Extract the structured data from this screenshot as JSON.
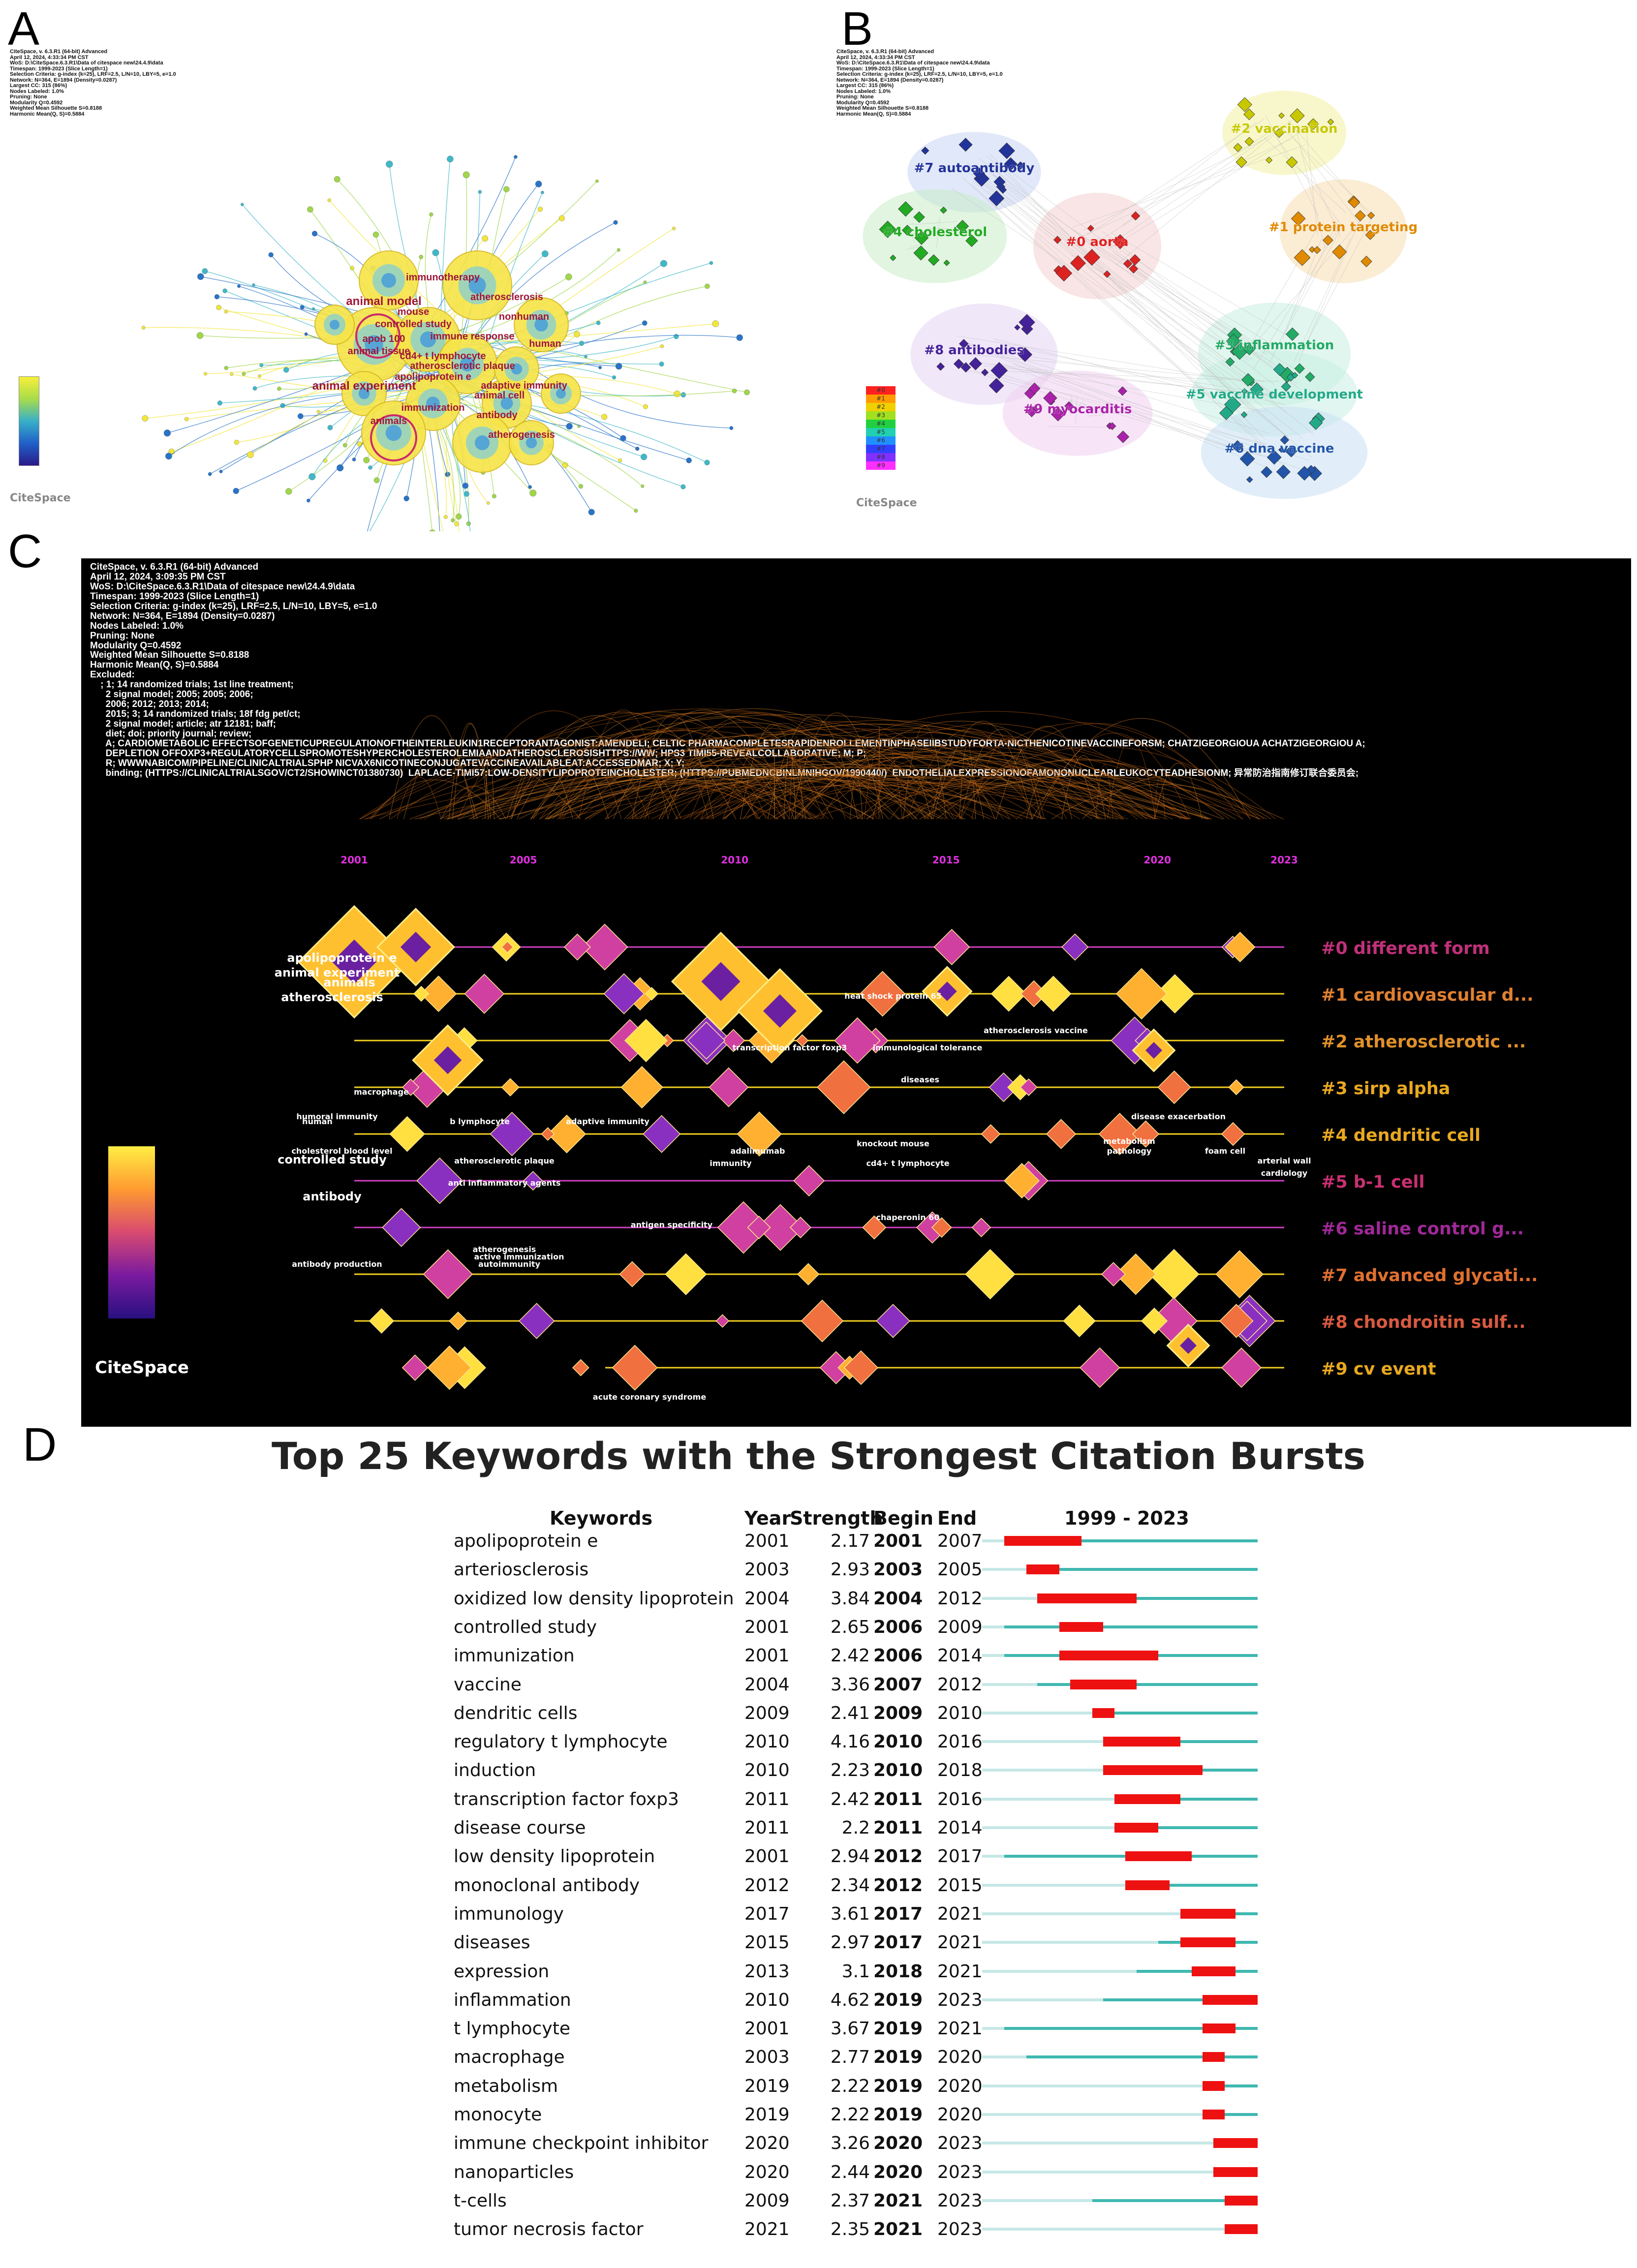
{
  "figure": {
    "panel_labels": [
      "A",
      "B",
      "C",
      "D"
    ]
  },
  "panelA": {
    "header_lines": [
      "CiteSpace, v. 6.3.R1 (64-bit) Advanced",
      "April 12, 2024, 4:33:34 PM CST",
      "WoS: D:\\CiteSpace.6.3.R1\\Data of citespace new\\24.4.9\\data",
      "Timespan: 1999-2023 (Slice Length=1)",
      "Selection Criteria: g-index (k=25), LRF=2.5, L/N=10, LBY=5, e=1.0",
      "Network: N=364, E=1894 (Density=0.0287)",
      "Largest CC: 315 (86%)",
      "Nodes Labeled: 1.0%",
      "Pruning: None",
      "Modularity Q=0.4592",
      "Weighted Mean Silhouette S=0.8188",
      "Harmonic Mean(Q, S)=0.5884"
    ],
    "keywords": [
      "immunotherapy",
      "animal model",
      "atherosclerosis",
      "mouse",
      "nonhuman",
      "controlled study",
      "apob 100",
      "immune response",
      "human",
      "animal tissue",
      "cd4+ t lymphocyte",
      "atherosclerotic plaque",
      "apolipoprotein e",
      "adaptive immunity",
      "animal experiment",
      "animal cell",
      "immunization",
      "animals",
      "antibody",
      "atherogenesis"
    ],
    "logo": "CiteSpace"
  },
  "panelB": {
    "header_lines": [
      "CiteSpace, v. 6.3.R1 (64-bit) Advanced",
      "April 12, 2024, 4:33:34 PM CST",
      "WoS: D:\\CiteSpace.6.3.R1\\Data of citespace new\\24.4.9\\data",
      "Timespan: 1999-2023 (Slice Length=1)",
      "Selection Criteria: g-index (k=25), LRF=2.5, L/N=10, LBY=5, e=1.0",
      "Network: N=364, E=1894 (Density=0.0287)",
      "Largest CC: 315 (86%)",
      "Nodes Labeled: 1.0%",
      "Pruning: None",
      "Modularity Q=0.4592",
      "Weighted Mean Silhouette S=0.8188",
      "Harmonic Mean(Q, S)=0.5884"
    ],
    "clusters": [
      {
        "label": "#2 vaccination",
        "color": "#c8c800"
      },
      {
        "label": "#7 autoantibody",
        "color": "#223399"
      },
      {
        "label": "#1 protein targeting",
        "color": "#e08a00"
      },
      {
        "label": "#4 cholesterol",
        "color": "#22aa22"
      },
      {
        "label": "#0 aorta",
        "color": "#dd2222"
      },
      {
        "label": "#8 antibodies",
        "color": "#442299"
      },
      {
        "label": "#3 inflammation",
        "color": "#22aa66"
      },
      {
        "label": "#5 vaccine development",
        "color": "#22aa88"
      },
      {
        "label": "#9 myocarditis",
        "color": "#aa22aa"
      },
      {
        "label": "#6 dna vaccine",
        "color": "#2255aa"
      }
    ],
    "legend": [
      "#0",
      "#1",
      "#2",
      "#3",
      "#4",
      "#5",
      "#6",
      "#7",
      "#8",
      "#9"
    ],
    "logo": "CiteSpace"
  },
  "panelC": {
    "header_lines": [
      "CiteSpace, v. 6.3.R1 (64-bit) Advanced",
      "April 12, 2024, 3:09:35 PM CST",
      "WoS: D:\\CiteSpace.6.3.R1\\Data of citespace new\\24.4.9\\data",
      "Timespan: 1999-2023 (Slice Length=1)",
      "Selection Criteria: g-index (k=25), LRF=2.5, L/N=10, LBY=5, e=1.0",
      "Network: N=364, E=1894 (Density=0.0287)",
      "Nodes Labeled: 1.0%",
      "Pruning: None",
      "Modularity Q=0.4592",
      "Weighted Mean Silhouette S=0.8188",
      "Harmonic Mean(Q, S)=0.5884",
      "Excluded:",
      "    ; 1; 14 randomized trials; 1st line treatment;",
      "      2 signal model; 2005; 2005; 2006;",
      "      2006; 2012; 2013; 2014;",
      "      2015; 3; 14 randomized trials; 18f fdg pet/ct;",
      "      2 signal model; article; atr 12181; baff;",
      "      diet; doi; priority journal; review;",
      "      A; CARDIOMETABOLIC EFFECTSOFGENETICUPREGULATIONOFTHEINTERLEUKIN1RECEPTORANTAGONIST:AMENDELI; CELTIC PHARMACOMPLETESRAPIDENROLLEMENTINPHASEIIBSTUDYFORTA-NICTHENICOTINEVACCINEFORSM; CHATZIGEORGIOUA ACHATZIGEORGIOU A;",
      "      DEPLETION OFFOXP3+REGULATORYCELLSPROMOTESHYPERCHOLESTEROLEMIAANDATHEROSCLEROSISHTTPS://WW; HPS3 TIMI55-REVEALCOLLABORATIVE; M; P;",
      "      R; WWWNABICOM/PIPELINE/CLINICALTRIALSPHP NICVAX6NICOTINECONJUGATEVACCINEAVAILABLEAT:ACCESSEDMAR; X; Y;",
      "      binding; (HTTPS://CLINICALTRIALSGOV/CT2/SHOWINCT01380730)  LAPLACE-TIMI57:LOW-DENSITYLIPOPROTEINCHOLESTER; (HTTPS://PUBMEDNCBINLMNIHGOV/1990440/)  ENDOTHELIALEXPRESSIONOFAMONONUCLEARLEUKOCYTEADHESIONM; 异常防治指南修订联合委员会;"
    ],
    "years": [
      "2001",
      "2005",
      "2010",
      "2015",
      "2020",
      "2023"
    ],
    "clusters": [
      {
        "label": "#0 different form",
        "color": "#c0307a"
      },
      {
        "label": "#1 cardiovascular d...",
        "color": "#e08030"
      },
      {
        "label": "#2 atherosclerotic ...",
        "color": "#e0902a"
      },
      {
        "label": "#3 sirp alpha",
        "color": "#e8a820"
      },
      {
        "label": "#4 dendritic cell",
        "color": "#e8a820"
      },
      {
        "label": "#5 b-1 cell",
        "color": "#c83070"
      },
      {
        "label": "#6 saline control g...",
        "color": "#a02898"
      },
      {
        "label": "#7 advanced glycati...",
        "color": "#e07030"
      },
      {
        "label": "#8 chondroitin sulf...",
        "color": "#d85a40"
      },
      {
        "label": "#9 cv event",
        "color": "#e8a820"
      }
    ],
    "node_labels": [
      "apolipoprotein e",
      "animal experiment",
      "animals",
      "atherosclerosis",
      "controlled study",
      "antibody",
      "cholesterol blood level",
      "human",
      "macrophage",
      "b lymphocyte",
      "adaptive immunity",
      "atherosclerotic plaque",
      "anti inflammatory agents",
      "antigen specificity",
      "atherogenesis",
      "autoimmunity",
      "immunity",
      "cd4+ t lymphocyte",
      "chaperonin 60",
      "adalimumab",
      "diseases",
      "transcription factor foxp3",
      "immunological tolerance",
      "atherosclerosis vaccine",
      "heat shock protein 65",
      "knockout mouse",
      "metabolism",
      "pathology",
      "foam cell",
      "cardiology",
      "arterial wall",
      "acute coronary syndrome",
      "antibody production",
      "active immunization",
      "disease exacerbation",
      "humoral immunity"
    ],
    "logo": "CiteSpace"
  },
  "panelD": {
    "title": "Top 25 Keywords with the Strongest Citation Bursts",
    "columns": {
      "keywords": "Keywords",
      "year": "Year",
      "strength": "Strength",
      "begin": "Begin",
      "end": "End",
      "span": "1999 - 2023"
    },
    "rows": [
      {
        "keyword": "apolipoprotein e",
        "year": "2001",
        "strength": "2.17",
        "begin": "2001",
        "end": "2007"
      },
      {
        "keyword": "arteriosclerosis",
        "year": "2003",
        "strength": "2.93",
        "begin": "2003",
        "end": "2005"
      },
      {
        "keyword": "oxidized low density lipoprotein",
        "year": "2004",
        "strength": "3.84",
        "begin": "2004",
        "end": "2012"
      },
      {
        "keyword": "controlled study",
        "year": "2001",
        "strength": "2.65",
        "begin": "2006",
        "end": "2009"
      },
      {
        "keyword": "immunization",
        "year": "2001",
        "strength": "2.42",
        "begin": "2006",
        "end": "2014"
      },
      {
        "keyword": "vaccine",
        "year": "2004",
        "strength": "3.36",
        "begin": "2007",
        "end": "2012"
      },
      {
        "keyword": "dendritic cells",
        "year": "2009",
        "strength": "2.41",
        "begin": "2009",
        "end": "2010"
      },
      {
        "keyword": "regulatory t lymphocyte",
        "year": "2010",
        "strength": "4.16",
        "begin": "2010",
        "end": "2016"
      },
      {
        "keyword": "induction",
        "year": "2010",
        "strength": "2.23",
        "begin": "2010",
        "end": "2018"
      },
      {
        "keyword": "transcription factor foxp3",
        "year": "2011",
        "strength": "2.42",
        "begin": "2011",
        "end": "2016"
      },
      {
        "keyword": "disease course",
        "year": "2011",
        "strength": "2.2",
        "begin": "2011",
        "end": "2014"
      },
      {
        "keyword": "low density lipoprotein",
        "year": "2001",
        "strength": "2.94",
        "begin": "2012",
        "end": "2017"
      },
      {
        "keyword": "monoclonal antibody",
        "year": "2012",
        "strength": "2.34",
        "begin": "2012",
        "end": "2015"
      },
      {
        "keyword": "immunology",
        "year": "2017",
        "strength": "3.61",
        "begin": "2017",
        "end": "2021"
      },
      {
        "keyword": "diseases",
        "year": "2015",
        "strength": "2.97",
        "begin": "2017",
        "end": "2021"
      },
      {
        "keyword": "expression",
        "year": "2013",
        "strength": "3.1",
        "begin": "2018",
        "end": "2021"
      },
      {
        "keyword": "inflammation",
        "year": "2010",
        "strength": "4.62",
        "begin": "2019",
        "end": "2023"
      },
      {
        "keyword": "t lymphocyte",
        "year": "2001",
        "strength": "3.67",
        "begin": "2019",
        "end": "2021"
      },
      {
        "keyword": "macrophage",
        "year": "2003",
        "strength": "2.77",
        "begin": "2019",
        "end": "2020"
      },
      {
        "keyword": "metabolism",
        "year": "2019",
        "strength": "2.22",
        "begin": "2019",
        "end": "2020"
      },
      {
        "keyword": "monocyte",
        "year": "2019",
        "strength": "2.22",
        "begin": "2019",
        "end": "2020"
      },
      {
        "keyword": "immune checkpoint inhibitor",
        "year": "2020",
        "strength": "3.26",
        "begin": "2020",
        "end": "2023"
      },
      {
        "keyword": "nanoparticles",
        "year": "2020",
        "strength": "2.44",
        "begin": "2020",
        "end": "2023"
      },
      {
        "keyword": "t-cells",
        "year": "2009",
        "strength": "2.37",
        "begin": "2021",
        "end": "2023"
      },
      {
        "keyword": "tumor necrosis factor",
        "year": "2021",
        "strength": "2.35",
        "begin": "2021",
        "end": "2023"
      }
    ]
  },
  "chart_data": {
    "type": "table",
    "title": "Top 25 Keywords with the Strongest Citation Bursts",
    "time_range": [
      1999,
      2023
    ],
    "columns": [
      "Keywords",
      "Year",
      "Strength",
      "Begin",
      "End"
    ],
    "colors": {
      "burst": "#ee1111",
      "active": "#3fb8b0",
      "inactive": "#c6e8e6"
    }
  }
}
